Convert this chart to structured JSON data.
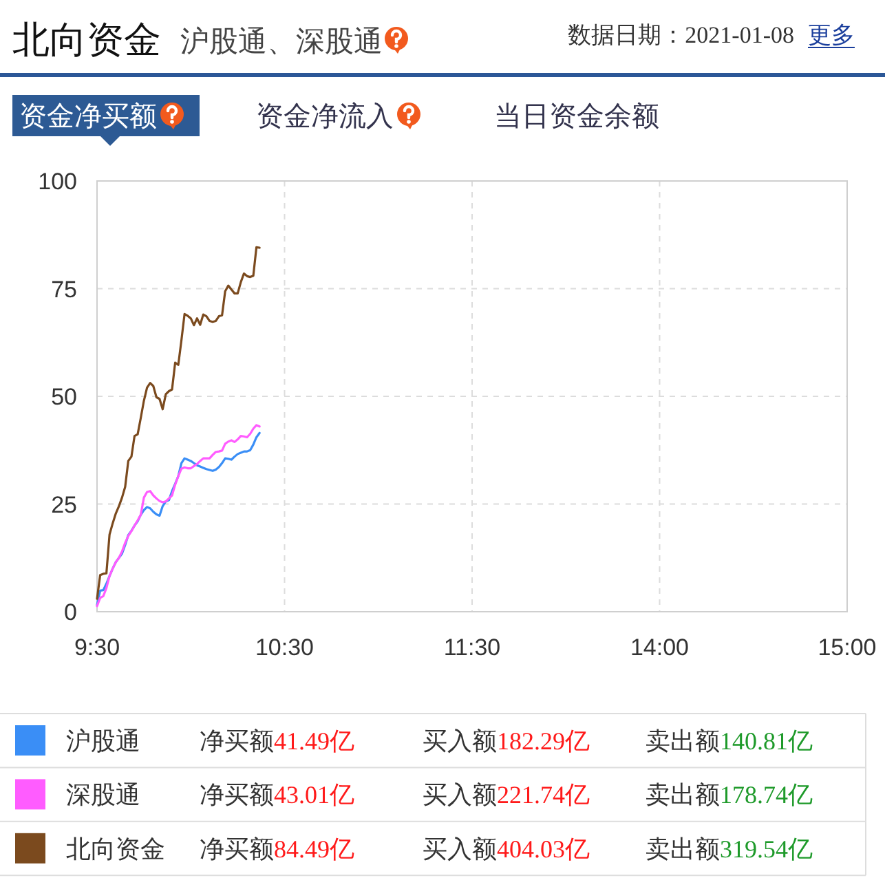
{
  "chart_data": {
    "type": "line",
    "title": "北向资金",
    "subtitle": "沪股通、深股通",
    "annotations": [
      "数据日期：2021-01-08",
      "更多",
      "资金净买额",
      "资金净流入",
      "当日资金余额",
      "净买额41.49亿",
      "买入额182.29亿",
      "卖出额140.81亿",
      "净买额43.01亿",
      "买入额221.74亿",
      "卖出额178.74亿",
      "净买额84.49亿",
      "买入额404.03亿",
      "卖出额319.54亿"
    ],
    "categories": [
      "9:30",
      null,
      null,
      null,
      null,
      null,
      null,
      null,
      null,
      null,
      null,
      null,
      null,
      null,
      null,
      null,
      null,
      null,
      null,
      null,
      null,
      null,
      null,
      null,
      null,
      null,
      null,
      null,
      null,
      null,
      null,
      null,
      null,
      null,
      null,
      null,
      null,
      null,
      null,
      null,
      null,
      null,
      null,
      null,
      null,
      null,
      null,
      null,
      null,
      null,
      null,
      null,
      null,
      null,
      null,
      null,
      null,
      null,
      null,
      null,
      "10:30",
      null,
      null,
      null,
      null,
      null,
      null,
      null,
      null,
      null,
      null,
      null,
      null,
      null,
      null,
      null,
      null,
      null,
      null,
      null,
      null,
      null,
      null,
      null,
      null,
      null,
      null,
      null,
      null,
      null,
      null,
      null,
      null,
      null,
      null,
      null,
      null,
      null,
      null,
      null,
      null,
      null,
      null,
      null,
      null,
      null,
      null,
      null,
      null,
      null,
      null,
      null,
      null,
      null,
      null,
      null,
      null,
      null,
      null,
      null,
      "11:30",
      null,
      null,
      null,
      null,
      null,
      null,
      null,
      null,
      null,
      null,
      null,
      null,
      null,
      null,
      null,
      null,
      null,
      null,
      null,
      null,
      null,
      null,
      null,
      null,
      null,
      null,
      null,
      null,
      null,
      null,
      null,
      null,
      null,
      null,
      null,
      null,
      null,
      null,
      null,
      null,
      null,
      null,
      null,
      null,
      null,
      null,
      null,
      null,
      null,
      null,
      null,
      null,
      null,
      null,
      null,
      null,
      null,
      null,
      null,
      "14:00",
      null,
      null,
      null,
      null,
      null,
      null,
      null,
      null,
      null,
      null,
      null,
      null,
      null,
      null,
      null,
      null,
      null,
      null,
      null,
      null,
      null,
      null,
      null,
      null,
      null,
      null,
      null,
      null,
      null,
      null,
      null,
      null,
      null,
      null,
      null,
      null,
      null,
      null,
      null,
      null,
      null,
      null,
      null,
      null,
      null,
      null,
      null,
      null,
      null,
      null,
      null,
      null,
      null,
      null,
      null,
      null,
      null,
      null,
      null,
      "15:00"
    ],
    "series": [
      {
        "name": "沪股通",
        "color": "#3a8ef6",
        "values": [
          1.6,
          4.9,
          5,
          6.5,
          8.3,
          10,
          11.5,
          12.5,
          13.5,
          15.5,
          17.8,
          18.8,
          20,
          21,
          22.5,
          23.6,
          24.3,
          24,
          23.2,
          22.6,
          22.3,
          24.5,
          25.6,
          25.9,
          28,
          29.7,
          31.5,
          34.5,
          35.6,
          35.3,
          35,
          34.5,
          34,
          33.7,
          33.4,
          33.1,
          32.9,
          32.7,
          33,
          33.6,
          34.5,
          35.6,
          35.5,
          35.3,
          36,
          36.6,
          36.9,
          37.2,
          37.2,
          37.5,
          38.8,
          40.5,
          41.5,
          null,
          null,
          null,
          null,
          null,
          null,
          null,
          null,
          null,
          null,
          null,
          null,
          null,
          null,
          null,
          null,
          null,
          null,
          null,
          null,
          null,
          null,
          null,
          null,
          null,
          null,
          null,
          null,
          null,
          null,
          null,
          null,
          null,
          null,
          null,
          null,
          null,
          null,
          null,
          null,
          null,
          null,
          null,
          null,
          null,
          null,
          null,
          null,
          null,
          null,
          null,
          null,
          null,
          null,
          null,
          null,
          null,
          null,
          null,
          null,
          null,
          null,
          null,
          null,
          null,
          null,
          null,
          null,
          null,
          null,
          null,
          null,
          null,
          null,
          null,
          null,
          null,
          null,
          null,
          null,
          null,
          null,
          null,
          null,
          null,
          null,
          null,
          null,
          null,
          null,
          null,
          null,
          null,
          null,
          null,
          null,
          null,
          null,
          null,
          null,
          null,
          null,
          null,
          null,
          null,
          null,
          null,
          null,
          null,
          null,
          null,
          null,
          null,
          null,
          null,
          null,
          null,
          null,
          null,
          null,
          null,
          null,
          null,
          null,
          null,
          null,
          null,
          null,
          null,
          null,
          null,
          null,
          null,
          null,
          null,
          null,
          null,
          null,
          null,
          null,
          null,
          null,
          null,
          null,
          null,
          null,
          null,
          null,
          null,
          null,
          null,
          null,
          null,
          null,
          null,
          null,
          null,
          null,
          null,
          null,
          null,
          null,
          null,
          null,
          null,
          null,
          null,
          null,
          null,
          null,
          null,
          null,
          null,
          null,
          null,
          null,
          null,
          null,
          null,
          null,
          null,
          null,
          null,
          null,
          null,
          null,
          null,
          null
        ]
      },
      {
        "name": "深股通",
        "color": "#ff5cff",
        "values": [
          1.3,
          3.2,
          3.6,
          5.5,
          8.3,
          10,
          11.5,
          12.5,
          14,
          16,
          17.6,
          18.7,
          20,
          21.2,
          22.5,
          26.5,
          27.8,
          28,
          27,
          26.3,
          25.7,
          25.4,
          25.6,
          26.3,
          27,
          29.5,
          31.5,
          33.2,
          33.5,
          33.3,
          33.3,
          33.8,
          34.3,
          35,
          35.6,
          35.6,
          35.6,
          36.4,
          37.1,
          37.2,
          37.4,
          39,
          39.5,
          39.8,
          39.4,
          40,
          40.8,
          40.7,
          40.5,
          41.3,
          42.5,
          43.3,
          43,
          null,
          null,
          null,
          null,
          null,
          null,
          null,
          null,
          null,
          null,
          null,
          null,
          null,
          null,
          null,
          null,
          null,
          null,
          null,
          null,
          null,
          null,
          null,
          null,
          null,
          null,
          null,
          null,
          null,
          null,
          null,
          null,
          null,
          null,
          null,
          null,
          null,
          null,
          null,
          null,
          null,
          null,
          null,
          null,
          null,
          null,
          null,
          null,
          null,
          null,
          null,
          null,
          null,
          null,
          null,
          null,
          null,
          null,
          null,
          null,
          null,
          null,
          null,
          null,
          null,
          null,
          null,
          null,
          null,
          null,
          null,
          null,
          null,
          null,
          null,
          null,
          null,
          null,
          null,
          null,
          null,
          null,
          null,
          null,
          null,
          null,
          null,
          null,
          null,
          null,
          null,
          null,
          null,
          null,
          null,
          null,
          null,
          null,
          null,
          null,
          null,
          null,
          null,
          null,
          null,
          null,
          null,
          null,
          null,
          null,
          null,
          null,
          null,
          null,
          null,
          null,
          null,
          null,
          null,
          null,
          null,
          null,
          null,
          null,
          null,
          null,
          null,
          null,
          null,
          null,
          null,
          null,
          null,
          null,
          null,
          null,
          null,
          null,
          null,
          null,
          null,
          null,
          null,
          null,
          null,
          null,
          null,
          null,
          null,
          null,
          null,
          null,
          null,
          null,
          null,
          null,
          null,
          null,
          null,
          null,
          null,
          null,
          null,
          null,
          null,
          null,
          null,
          null,
          null,
          null,
          null,
          null,
          null,
          null,
          null,
          null,
          null,
          null,
          null,
          null,
          null,
          null,
          null,
          null,
          null,
          null,
          null,
          null
        ]
      },
      {
        "name": "北向资金",
        "color": "#7b4a1e",
        "values": [
          3,
          8.5,
          8.8,
          8.9,
          17.9,
          20.5,
          22.8,
          24.5,
          26.5,
          29,
          35,
          36,
          40.8,
          41.2,
          45,
          49,
          52,
          53.1,
          52.4,
          49.8,
          49.4,
          47,
          50.5,
          51.2,
          51.6,
          57.8,
          57.3,
          63,
          69.1,
          68.7,
          68.1,
          66.5,
          68.1,
          66.6,
          69,
          68.6,
          67.5,
          67.3,
          67.5,
          68.6,
          68.8,
          74.4,
          75.7,
          74.8,
          73.9,
          73.9,
          76.5,
          78.5,
          77.9,
          77.7,
          78,
          84.6,
          84.5,
          null,
          null,
          null,
          null,
          null,
          null,
          null,
          null,
          null,
          null,
          null,
          null,
          null,
          null,
          null,
          null,
          null,
          null,
          null,
          null,
          null,
          null,
          null,
          null,
          null,
          null,
          null,
          null,
          null,
          null,
          null,
          null,
          null,
          null,
          null,
          null,
          null,
          null,
          null,
          null,
          null,
          null,
          null,
          null,
          null,
          null,
          null,
          null,
          null,
          null,
          null,
          null,
          null,
          null,
          null,
          null,
          null,
          null,
          null,
          null,
          null,
          null,
          null,
          null,
          null,
          null,
          null,
          null,
          null,
          null,
          null,
          null,
          null,
          null,
          null,
          null,
          null,
          null,
          null,
          null,
          null,
          null,
          null,
          null,
          null,
          null,
          null,
          null,
          null,
          null,
          null,
          null,
          null,
          null,
          null,
          null,
          null,
          null,
          null,
          null,
          null,
          null,
          null,
          null,
          null,
          null,
          null,
          null,
          null,
          null,
          null,
          null,
          null,
          null,
          null,
          null,
          null,
          null,
          null,
          null,
          null,
          null,
          null,
          null,
          null,
          null,
          null,
          null,
          null,
          null,
          null,
          null,
          null,
          null,
          null,
          null,
          null,
          null,
          null,
          null,
          null,
          null,
          null,
          null,
          null,
          null,
          null,
          null,
          null,
          null,
          null,
          null,
          null,
          null,
          null,
          null,
          null,
          null,
          null,
          null,
          null,
          null,
          null,
          null,
          null,
          null,
          null,
          null,
          null,
          null,
          null,
          null,
          null,
          null,
          null,
          null,
          null,
          null,
          null,
          null,
          null,
          null,
          null,
          null,
          null,
          null,
          null,
          null
        ]
      }
    ],
    "ylim": [
      0,
      100
    ],
    "yticks": [
      0,
      25,
      50,
      75,
      100
    ],
    "grid": true,
    "legend": "bottom"
  }
}
